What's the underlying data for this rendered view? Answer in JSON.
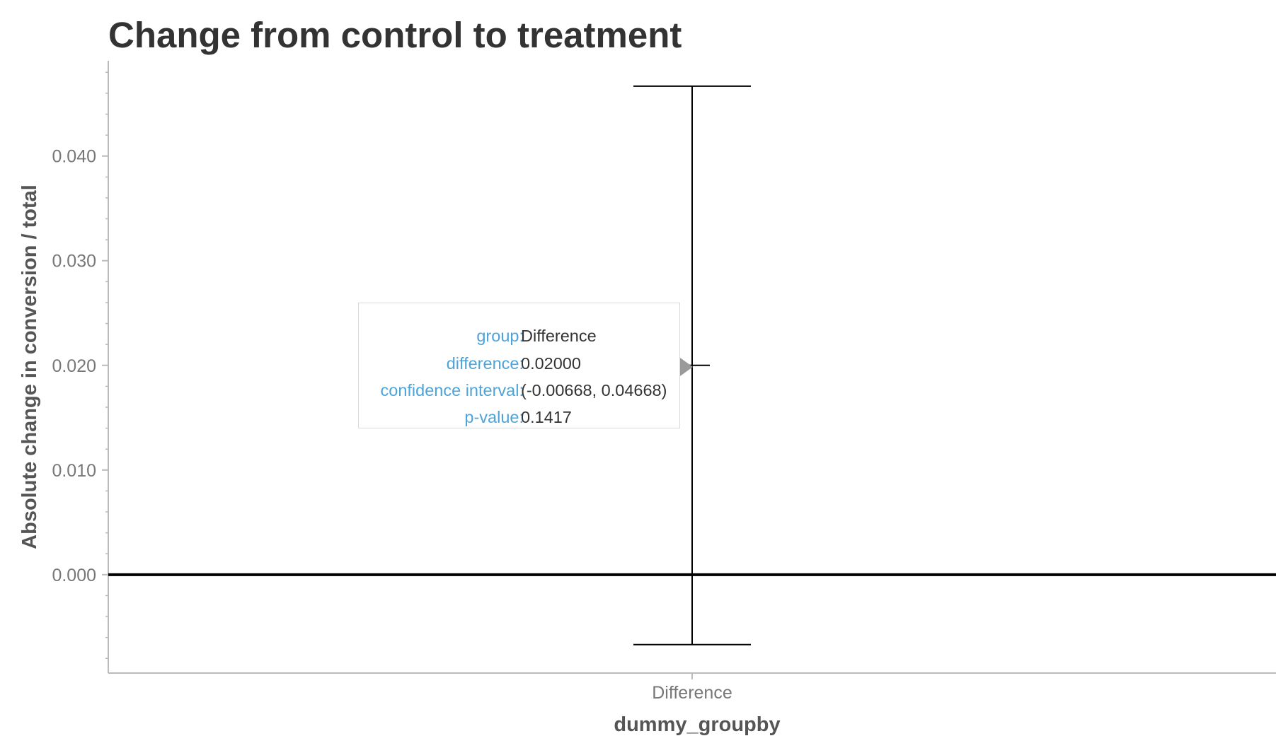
{
  "chart_data": {
    "type": "errorbar",
    "title": "Change from control to treatment",
    "xlabel": "dummy_groupby",
    "ylabel": "Absolute change in conversion / total",
    "categories": [
      "Difference"
    ],
    "values": [
      0.02
    ],
    "ci_lower": [
      -0.00668
    ],
    "ci_upper": [
      0.04668
    ],
    "ylim": [
      -0.0094,
      0.0491
    ],
    "yticks": [
      0.0,
      0.01,
      0.02,
      0.03,
      0.04
    ],
    "ytick_labels": [
      "0.000",
      "0.010",
      "0.020",
      "0.030",
      "0.040"
    ],
    "reference_line": 0.0,
    "grid": false,
    "legend": "none"
  },
  "tooltip": {
    "rows": [
      {
        "key": "group:",
        "value": "Difference"
      },
      {
        "key": "difference:",
        "value": "0.02000"
      },
      {
        "key": "confidence interval:",
        "value": "(-0.00668, 0.04668)"
      },
      {
        "key": "p-value:",
        "value": "0.1417"
      }
    ]
  },
  "colors": {
    "title": "#333333",
    "axis_label": "#555555",
    "tick_label": "#777777",
    "axis_line": "#bbbbbb",
    "marks": "#000000",
    "tooltip_key": "#4ea3d8",
    "tooltip_value": "#333333",
    "tooltip_border": "#d9d9d9",
    "tooltip_pointer": "#9a9a9a"
  }
}
